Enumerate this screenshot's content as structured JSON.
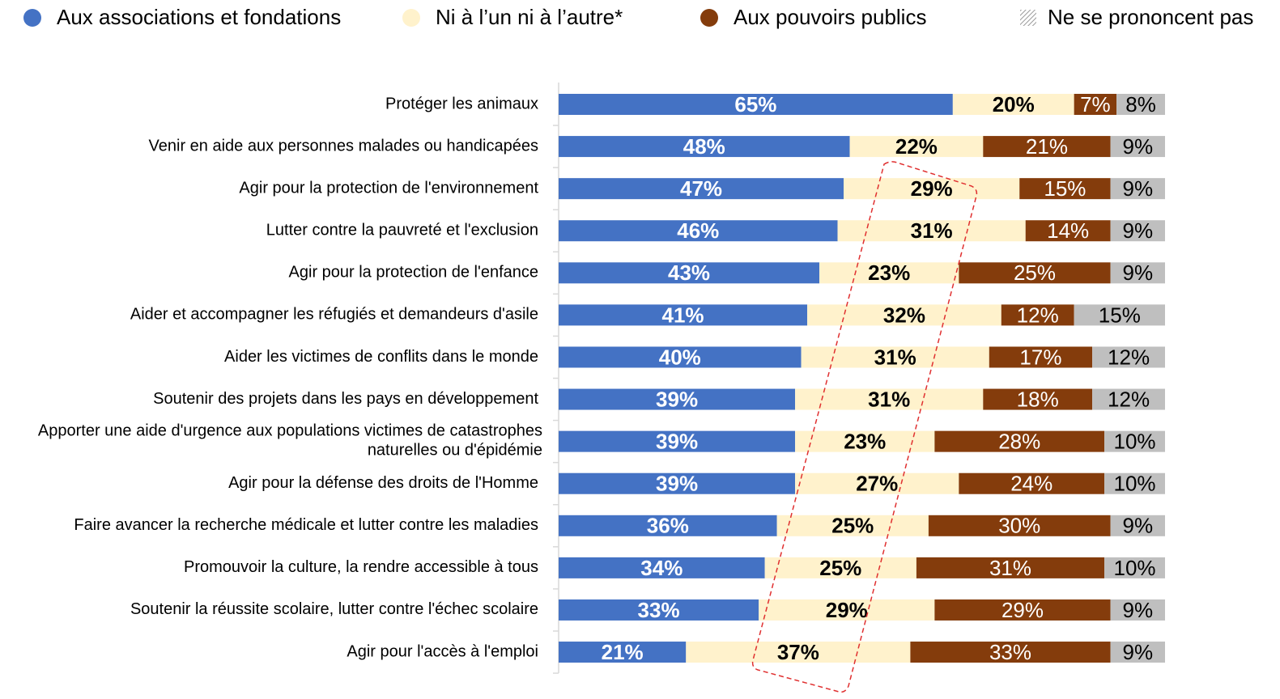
{
  "chart_data": {
    "type": "stacked-bar-horizontal",
    "categories": [
      "Protéger les animaux",
      "Venir en aide aux personnes malades ou handicapées",
      "Agir pour la protection de l'environnement",
      "Lutter contre la pauvreté et l'exclusion",
      "Agir pour la protection de l'enfance",
      "Aider et accompagner les réfugiés et demandeurs d'asile",
      "Aider les victimes de conflits dans le monde",
      "Soutenir des projets dans les pays en développement",
      "Apporter une aide d'urgence aux populations victimes de catastrophes\nnaturelles ou d'épidémie",
      "Agir pour la défense des droits de l'Homme",
      "Faire avancer la recherche médicale et lutter contre les maladies",
      "Promouvoir la culture, la rendre accessible à tous",
      "Soutenir la réussite scolaire, lutter contre l'échec scolaire",
      "Agir pour l'accès à l'emploi"
    ],
    "series": [
      {
        "name": "Aux associations et fondations",
        "color": "#4472c4",
        "values": [
          65,
          48,
          47,
          46,
          43,
          41,
          40,
          39,
          39,
          39,
          36,
          34,
          33,
          21
        ],
        "value_labels": [
          "65%",
          "48%",
          "47%",
          "46%",
          "43%",
          "41%",
          "40%",
          "39%",
          "39%",
          "39%",
          "36%",
          "34%",
          "33%",
          "21%"
        ]
      },
      {
        "name": "Ni à l’un ni à l’autre*",
        "color": "#fff2cc",
        "values": [
          20,
          22,
          29,
          31,
          23,
          32,
          31,
          31,
          23,
          27,
          25,
          25,
          29,
          37
        ],
        "value_labels": [
          "20%",
          "22%",
          "29%",
          "31%",
          "23%",
          "32%",
          "31%",
          "31%",
          "23%",
          "27%",
          "25%",
          "25%",
          "29%",
          "37%"
        ]
      },
      {
        "name": "Aux pouvoirs publics",
        "color": "#843c0c",
        "values": [
          7,
          21,
          15,
          14,
          25,
          12,
          17,
          18,
          28,
          24,
          30,
          31,
          29,
          33
        ],
        "value_labels": [
          "7%",
          "21%",
          "15%",
          "14%",
          "25%",
          "12%",
          "17%",
          "18%",
          "28%",
          "24%",
          "30%",
          "31%",
          "29%",
          "33%"
        ]
      },
      {
        "name": "Ne se prononcent pas",
        "color": "#bfbfbf",
        "values": [
          8,
          9,
          9,
          9,
          9,
          15,
          12,
          12,
          10,
          10,
          9,
          10,
          9,
          9
        ],
        "value_labels": [
          "8%",
          "9%",
          "9%",
          "9%",
          "9%",
          "15%",
          "12%",
          "12%",
          "10%",
          "10%",
          "9%",
          "10%",
          "9%",
          "9%"
        ]
      }
    ],
    "xlim": [
      0,
      100
    ]
  }
}
